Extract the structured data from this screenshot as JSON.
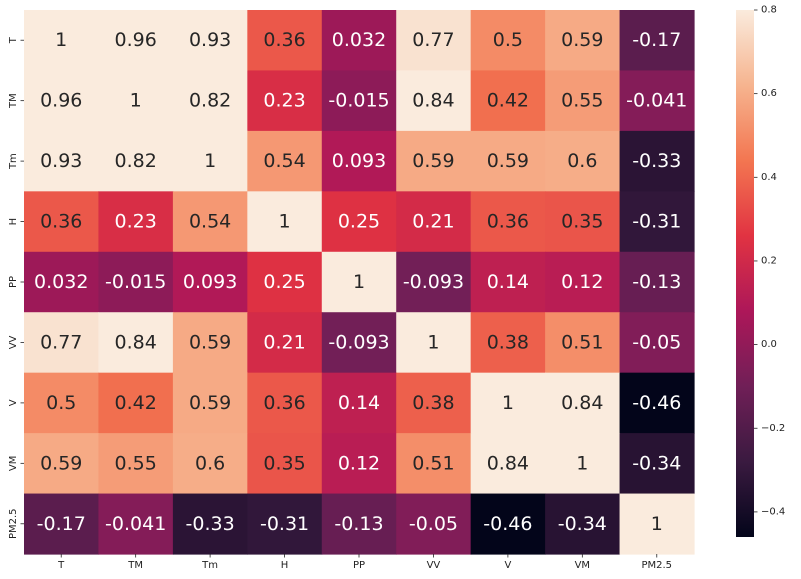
{
  "chart_data": {
    "type": "heatmap",
    "title": "",
    "xlabel": "",
    "ylabel": "",
    "x_labels": [
      "T",
      "TM",
      "Tm",
      "H",
      "PP",
      "VV",
      "V",
      "VM",
      "PM2.5"
    ],
    "y_labels": [
      "T",
      "TM",
      "Tm",
      "H",
      "PP",
      "VV",
      "V",
      "VM",
      "PM2.5"
    ],
    "values": [
      [
        1,
        0.96,
        0.93,
        0.36,
        0.032,
        0.77,
        0.5,
        0.59,
        -0.17
      ],
      [
        0.96,
        1,
        0.82,
        0.23,
        -0.015,
        0.84,
        0.42,
        0.55,
        -0.041
      ],
      [
        0.93,
        0.82,
        1,
        0.54,
        0.093,
        0.59,
        0.59,
        0.6,
        -0.33
      ],
      [
        0.36,
        0.23,
        0.54,
        1,
        0.25,
        0.21,
        0.36,
        0.35,
        -0.31
      ],
      [
        0.032,
        -0.015,
        0.093,
        0.25,
        1,
        -0.093,
        0.14,
        0.12,
        -0.13
      ],
      [
        0.77,
        0.84,
        0.59,
        0.21,
        -0.093,
        1,
        0.38,
        0.51,
        -0.05
      ],
      [
        0.5,
        0.42,
        0.59,
        0.36,
        0.14,
        0.38,
        1,
        0.84,
        -0.46
      ],
      [
        0.59,
        0.55,
        0.6,
        0.35,
        0.12,
        0.51,
        0.84,
        1,
        -0.34
      ],
      [
        -0.17,
        -0.041,
        -0.33,
        -0.31,
        -0.13,
        -0.05,
        -0.46,
        -0.34,
        1
      ]
    ],
    "annotations": [
      [
        "1",
        "0.96",
        "0.93",
        "0.36",
        "0.032",
        "0.77",
        "0.5",
        "0.59",
        "-0.17"
      ],
      [
        "0.96",
        "1",
        "0.82",
        "0.23",
        "-0.015",
        "0.84",
        "0.42",
        "0.55",
        "-0.041"
      ],
      [
        "0.93",
        "0.82",
        "1",
        "0.54",
        "0.093",
        "0.59",
        "0.59",
        "0.6",
        "-0.33"
      ],
      [
        "0.36",
        "0.23",
        "0.54",
        "1",
        "0.25",
        "0.21",
        "0.36",
        "0.35",
        "-0.31"
      ],
      [
        "0.032",
        "-0.015",
        "0.093",
        "0.25",
        "1",
        "-0.093",
        "0.14",
        "0.12",
        "-0.13"
      ],
      [
        "0.77",
        "0.84",
        "0.59",
        "0.21",
        "-0.093",
        "1",
        "0.38",
        "0.51",
        "-0.05"
      ],
      [
        "0.5",
        "0.42",
        "0.59",
        "0.36",
        "0.14",
        "0.38",
        "1",
        "0.84",
        "-0.46"
      ],
      [
        "0.59",
        "0.55",
        "0.6",
        "0.35",
        "0.12",
        "0.51",
        "0.84",
        "1",
        "-0.34"
      ],
      [
        "-0.17",
        "-0.041",
        "-0.33",
        "-0.31",
        "-0.13",
        "-0.05",
        "-0.46",
        "-0.34",
        "1"
      ]
    ],
    "colorbar": {
      "range": [
        -0.46,
        0.8
      ],
      "ticks": [
        0.8,
        0.6,
        0.4,
        0.2,
        0.0,
        -0.2,
        -0.4
      ],
      "tick_labels": [
        "0.8",
        "0.6",
        "0.4",
        "0.2",
        "0.0",
        "−0.2",
        "−0.4"
      ],
      "colormap": "rocket",
      "colormap_stops": [
        "#03051a",
        "#3a1a40",
        "#701f57",
        "#ad1759",
        "#e13342",
        "#f37651",
        "#f6b48f",
        "#faebdd"
      ]
    },
    "grid": false,
    "legend": "colorbar-right"
  }
}
